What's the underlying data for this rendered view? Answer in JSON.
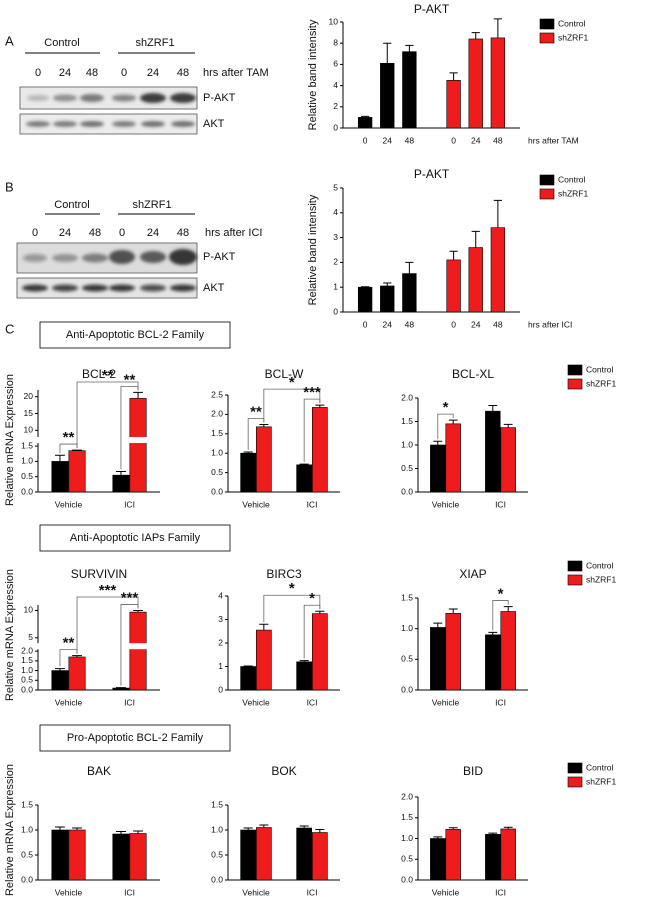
{
  "blots": [
    {
      "label": "A",
      "groups": [
        "Control",
        "shZRF1"
      ],
      "times": [
        "0",
        "24",
        "48",
        "0",
        "24",
        "48"
      ],
      "time_label": "hrs after TAM",
      "rows": [
        "P-AKT",
        "AKT"
      ]
    },
    {
      "label": "B",
      "groups": [
        "Control",
        "shZRF1"
      ],
      "times": [
        "0",
        "24",
        "48",
        "0",
        "24",
        "48"
      ],
      "time_label": "hrs after ICI",
      "rows": [
        "P-AKT",
        "AKT"
      ]
    }
  ],
  "panel_c": {
    "label": "C",
    "sections": [
      "Anti-Apoptotic BCL-2 Family",
      "Anti-Apoptotic IAPs Family",
      "Pro-Apoptotic BCL-2 Family"
    ],
    "y_label": "Relative mRNA Expression"
  },
  "chart_data": [
    {
      "type": "bar",
      "title": "P-AKT",
      "y_label": "Relative band intensity",
      "x_label": "hrs after TAM",
      "categories": [
        "0",
        "24",
        "48"
      ],
      "bar_layout": "series_blocks",
      "series": [
        {
          "name": "Control",
          "color": "#000000",
          "values": [
            1,
            6.1,
            7.2
          ],
          "errors": [
            0.1,
            1.9,
            0.6
          ]
        },
        {
          "name": "shZRF1",
          "color": "#ee1c1c",
          "values": [
            4.5,
            8.4,
            8.5
          ],
          "errors": [
            0.7,
            0.6,
            1.8
          ]
        }
      ],
      "ylim": [
        0,
        10
      ],
      "yticks": [
        0,
        2,
        4,
        6,
        8,
        10
      ],
      "legend": "outside right"
    },
    {
      "type": "bar",
      "title": "P-AKT",
      "y_label": "Relative band intensity",
      "x_label": "hrs after ICI",
      "categories": [
        "0",
        "24",
        "48"
      ],
      "bar_layout": "series_blocks",
      "series": [
        {
          "name": "Control",
          "color": "#000000",
          "values": [
            1,
            1.05,
            1.55
          ],
          "errors": [
            0.02,
            0.12,
            0.45
          ]
        },
        {
          "name": "shZRF1",
          "color": "#ee1c1c",
          "values": [
            2.1,
            2.6,
            3.4
          ],
          "errors": [
            0.35,
            0.65,
            1.1
          ]
        }
      ],
      "ylim": [
        0,
        5
      ],
      "yticks": [
        0,
        1,
        2,
        3,
        4,
        5
      ],
      "legend": "outside right"
    },
    {
      "type": "bar",
      "title": "BCL-2",
      "categories": [
        "Vehicle",
        "ICI"
      ],
      "bar_layout": "grouped",
      "series": [
        {
          "name": "Control",
          "color": "#000000",
          "values": [
            1.0,
            0.55
          ],
          "errors": [
            0.2,
            0.12
          ]
        },
        {
          "name": "shZRF1",
          "color": "#ee1c1c",
          "values": [
            1.35,
            19.5
          ],
          "errors": [
            0.02,
            1.8
          ]
        }
      ],
      "ylim": [
        0,
        22
      ],
      "ybreak": [
        1.6,
        8
      ],
      "yticks": [
        {
          "value": 0,
          "label": "0.0"
        },
        0.5,
        {
          "value": 1,
          "label": "1.0"
        },
        1.5,
        10,
        15,
        20
      ],
      "annotations": [
        {
          "text": "**",
          "between": [
            [
              0,
              0
            ],
            [
              1,
              0
            ]
          ]
        },
        {
          "text": "**",
          "between": [
            [
              1,
              0
            ],
            [
              1,
              1
            ]
          ]
        },
        {
          "text": "**",
          "between": [
            [
              0,
              1
            ],
            [
              1,
              1
            ]
          ]
        }
      ]
    },
    {
      "type": "bar",
      "title": "BCL-W",
      "categories": [
        "Vehicle",
        "ICI"
      ],
      "bar_layout": "grouped",
      "series": [
        {
          "name": "Control",
          "color": "#000000",
          "values": [
            1.0,
            0.7
          ],
          "errors": [
            0.03,
            0.02
          ]
        },
        {
          "name": "shZRF1",
          "color": "#ee1c1c",
          "values": [
            1.68,
            2.18
          ],
          "errors": [
            0.06,
            0.06
          ]
        }
      ],
      "ylim": [
        0,
        2.5
      ],
      "yticks": [
        {
          "value": 0,
          "label": "0.0"
        },
        0.5,
        {
          "value": 1,
          "label": "1.0"
        },
        1.5,
        {
          "value": 2,
          "label": "2.0"
        },
        2.5
      ],
      "annotations": [
        {
          "text": "**",
          "between": [
            [
              0,
              0
            ],
            [
              1,
              0
            ]
          ]
        },
        {
          "text": "*",
          "between": [
            [
              1,
              0
            ],
            [
              1,
              1
            ]
          ]
        },
        {
          "text": "***",
          "between": [
            [
              0,
              1
            ],
            [
              1,
              1
            ]
          ]
        }
      ]
    },
    {
      "type": "bar",
      "title": "BCL-XL",
      "categories": [
        "Vehicle",
        "ICI"
      ],
      "bar_layout": "grouped",
      "series": [
        {
          "name": "Control",
          "color": "#000000",
          "values": [
            1.0,
            1.72
          ],
          "errors": [
            0.08,
            0.12
          ]
        },
        {
          "name": "shZRF1",
          "color": "#ee1c1c",
          "values": [
            1.45,
            1.37
          ],
          "errors": [
            0.08,
            0.07
          ]
        }
      ],
      "ylim": [
        0,
        2
      ],
      "yticks": [
        {
          "value": 0,
          "label": "0.0"
        },
        0.5,
        {
          "value": 1,
          "label": "1.0"
        },
        1.5,
        {
          "value": 2,
          "label": "2.0"
        }
      ],
      "annotations": [
        {
          "text": "*",
          "between": [
            [
              0,
              0
            ],
            [
              1,
              0
            ]
          ]
        }
      ],
      "legend": "outside right"
    },
    {
      "type": "bar",
      "title": "SURVIVIN",
      "categories": [
        "Vehicle",
        "ICI"
      ],
      "bar_layout": "grouped",
      "series": [
        {
          "name": "Control",
          "color": "#000000",
          "values": [
            1.0,
            0.1
          ],
          "errors": [
            0.1,
            0.02
          ]
        },
        {
          "name": "shZRF1",
          "color": "#ee1c1c",
          "values": [
            1.7,
            9.7
          ],
          "errors": [
            0.07,
            0.3
          ]
        }
      ],
      "ylim": [
        0,
        11
      ],
      "ybreak": [
        2.1,
        4
      ],
      "yticks": [
        {
          "value": 0,
          "label": "0.0"
        },
        0.5,
        {
          "value": 1,
          "label": "1.0"
        },
        1.5,
        {
          "value": 2,
          "label": "2.0"
        },
        5,
        10
      ],
      "annotations": [
        {
          "text": "**",
          "between": [
            [
              0,
              0
            ],
            [
              1,
              0
            ]
          ]
        },
        {
          "text": "***",
          "between": [
            [
              1,
              0
            ],
            [
              1,
              1
            ]
          ]
        },
        {
          "text": "***",
          "between": [
            [
              0,
              1
            ],
            [
              1,
              1
            ]
          ]
        }
      ]
    },
    {
      "type": "bar",
      "title": "BIRC3",
      "categories": [
        "Vehicle",
        "ICI"
      ],
      "bar_layout": "grouped",
      "series": [
        {
          "name": "Control",
          "color": "#000000",
          "values": [
            1.0,
            1.2
          ],
          "errors": [
            0.02,
            0.05
          ]
        },
        {
          "name": "shZRF1",
          "color": "#ee1c1c",
          "values": [
            2.55,
            3.25
          ],
          "errors": [
            0.25,
            0.1
          ]
        }
      ],
      "ylim": [
        0,
        4
      ],
      "yticks": [
        0,
        1,
        2,
        3,
        4
      ],
      "annotations": [
        {
          "text": "*",
          "between": [
            [
              1,
              0
            ],
            [
              1,
              1
            ]
          ]
        },
        {
          "text": "*",
          "between": [
            [
              0,
              1
            ],
            [
              1,
              1
            ]
          ]
        }
      ]
    },
    {
      "type": "bar",
      "title": "XIAP",
      "categories": [
        "Vehicle",
        "ICI"
      ],
      "bar_layout": "grouped",
      "series": [
        {
          "name": "Control",
          "color": "#000000",
          "values": [
            1.02,
            0.9
          ],
          "errors": [
            0.07,
            0.04
          ]
        },
        {
          "name": "shZRF1",
          "color": "#ee1c1c",
          "values": [
            1.25,
            1.28
          ],
          "errors": [
            0.07,
            0.08
          ]
        }
      ],
      "ylim": [
        0,
        1.5
      ],
      "yticks": [
        {
          "value": 0,
          "label": "0.0"
        },
        0.5,
        {
          "value": 1,
          "label": "1.0"
        },
        1.5
      ],
      "annotations": [
        {
          "text": "*",
          "between": [
            [
              0,
              1
            ],
            [
              1,
              1
            ]
          ]
        }
      ],
      "legend": "outside right"
    },
    {
      "type": "bar",
      "title": "BAK",
      "categories": [
        "Vehicle",
        "ICI"
      ],
      "bar_layout": "grouped",
      "series": [
        {
          "name": "Control",
          "color": "#000000",
          "values": [
            1.0,
            0.92
          ],
          "errors": [
            0.06,
            0.05
          ]
        },
        {
          "name": "shZRF1",
          "color": "#ee1c1c",
          "values": [
            1.0,
            0.93
          ],
          "errors": [
            0.04,
            0.05
          ]
        }
      ],
      "ylim": [
        0,
        1.5
      ],
      "yticks": [
        {
          "value": 0,
          "label": "0.0"
        },
        0.5,
        {
          "value": 1,
          "label": "1.0"
        },
        1.5
      ]
    },
    {
      "type": "bar",
      "title": "BOK",
      "categories": [
        "Vehicle",
        "ICI"
      ],
      "bar_layout": "grouped",
      "series": [
        {
          "name": "Control",
          "color": "#000000",
          "values": [
            1.0,
            1.04
          ],
          "errors": [
            0.04,
            0.04
          ]
        },
        {
          "name": "shZRF1",
          "color": "#ee1c1c",
          "values": [
            1.05,
            0.95
          ],
          "errors": [
            0.05,
            0.06
          ]
        }
      ],
      "ylim": [
        0,
        1.5
      ],
      "yticks": [
        {
          "value": 0,
          "label": "0.0"
        },
        0.5,
        {
          "value": 1,
          "label": "1.0"
        },
        1.5
      ]
    },
    {
      "type": "bar",
      "title": "BID",
      "categories": [
        "Vehicle",
        "ICI"
      ],
      "bar_layout": "grouped",
      "series": [
        {
          "name": "Control",
          "color": "#000000",
          "values": [
            1.0,
            1.1
          ],
          "errors": [
            0.04,
            0.03
          ]
        },
        {
          "name": "shZRF1",
          "color": "#ee1c1c",
          "values": [
            1.22,
            1.23
          ],
          "errors": [
            0.04,
            0.04
          ]
        }
      ],
      "ylim": [
        0,
        2
      ],
      "yticks": [
        {
          "value": 0,
          "label": "0.0"
        },
        0.5,
        {
          "value": 1,
          "label": "1.0"
        },
        1.5,
        {
          "value": 2,
          "label": "2.0"
        }
      ],
      "legend": "outside right"
    }
  ]
}
